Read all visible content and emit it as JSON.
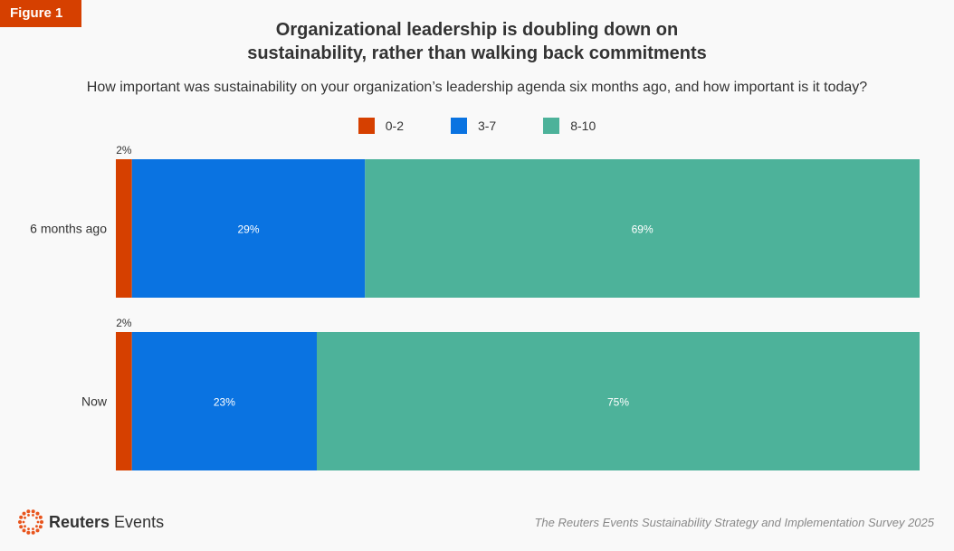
{
  "figure_label": "Figure 1",
  "chart_data": {
    "type": "bar",
    "orientation": "horizontal",
    "stacked": true,
    "title": "Organizational leadership is doubling down on sustainability, rather than walking back commitments",
    "subtitle": "How important was sustainability on your organization’s leadership agenda six months ago, and how important is it today?",
    "categories": [
      "6 months ago",
      "Now"
    ],
    "series": [
      {
        "name": "0-2",
        "color": "#d64000",
        "values": [
          2,
          2
        ],
        "labels": [
          "2%",
          "2%"
        ]
      },
      {
        "name": "3-7",
        "color": "#0a73e1",
        "values": [
          29,
          23
        ],
        "labels": [
          "29%",
          "23%"
        ]
      },
      {
        "name": "8-10",
        "color": "#4db29a",
        "values": [
          69,
          75
        ],
        "labels": [
          "69%",
          "75%"
        ]
      }
    ],
    "xlim": [
      0,
      100
    ],
    "legend": "top",
    "grid": false
  },
  "footer": {
    "brand": "Reuters Events",
    "brand_bold": "Reuters",
    "brand_rest": "Events",
    "source": "The Reuters Events Sustainability Strategy and Implementation Survey 2025"
  }
}
